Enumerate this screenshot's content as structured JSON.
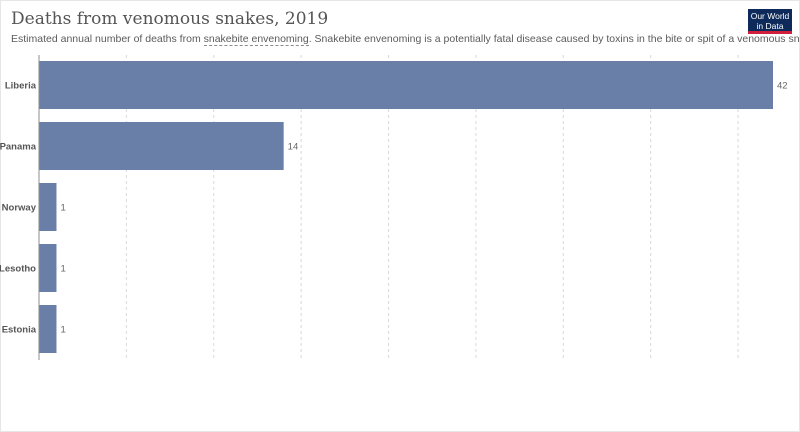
{
  "header": {
    "title": "Deaths from venomous snakes, 2019",
    "subtitle_prefix": "Estimated annual number of deaths from ",
    "subtitle_link": "snakebite envenoming",
    "subtitle_suffix": ". Snakebite envenoming is a potentially fatal disease caused by toxins in the bite or spit of a venomous snake."
  },
  "logo": {
    "line1": "Our World",
    "line2": "in Data"
  },
  "colors": {
    "bar": "#6a7fa8",
    "grid": "#d9d9d9",
    "axis": "#8c8c8c",
    "logo_bg": "#0d2a5b",
    "logo_accent": "#cf1f3a"
  },
  "chart_data": {
    "type": "bar",
    "orientation": "horizontal",
    "categories": [
      "Liberia",
      "Panama",
      "Norway",
      "Lesotho",
      "Estonia"
    ],
    "values": [
      42,
      14,
      1,
      1,
      1
    ],
    "xlim": [
      0,
      42
    ],
    "grid": true
  }
}
